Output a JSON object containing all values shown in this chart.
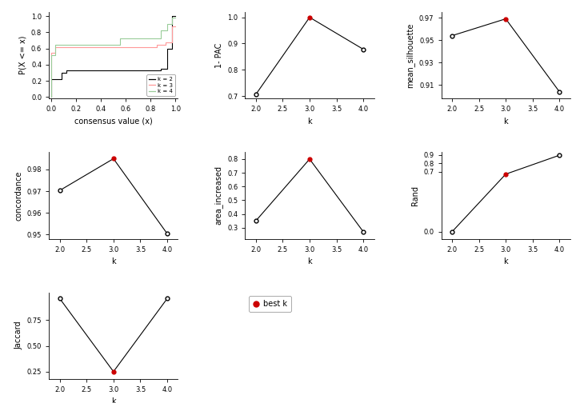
{
  "ecdf": {
    "k2_x": [
      0.0,
      0.0,
      0.08,
      0.08,
      0.12,
      0.12,
      0.88,
      0.88,
      0.93,
      0.93,
      0.97,
      0.97,
      1.0
    ],
    "k2_y": [
      0.0,
      0.22,
      0.22,
      0.3,
      0.3,
      0.33,
      0.33,
      0.35,
      0.35,
      0.6,
      0.6,
      1.0,
      1.0
    ],
    "k3_x": [
      0.0,
      0.0,
      0.03,
      0.03,
      0.85,
      0.85,
      0.92,
      0.92,
      0.97,
      0.97,
      1.0
    ],
    "k3_y": [
      0.0,
      0.55,
      0.55,
      0.62,
      0.62,
      0.65,
      0.65,
      0.68,
      0.68,
      0.87,
      0.87
    ],
    "k4_x": [
      0.0,
      0.0,
      0.03,
      0.03,
      0.55,
      0.55,
      0.88,
      0.88,
      0.93,
      0.93,
      0.97,
      0.97,
      1.0
    ],
    "k4_y": [
      0.0,
      0.52,
      0.52,
      0.65,
      0.65,
      0.72,
      0.72,
      0.82,
      0.82,
      0.9,
      0.9,
      0.98,
      0.98
    ],
    "xlabel": "consensus value (x)",
    "ylabel": "P(X <= x)",
    "color_k2": "#000000",
    "color_k3": "#FF9999",
    "color_k4": "#99CC99"
  },
  "pac": {
    "k": [
      2.0,
      3.0,
      4.0
    ],
    "y": [
      0.706,
      1.0,
      0.878
    ],
    "best_k": 3,
    "ylabel": "1- PAC",
    "ylim": [
      0.69,
      1.02
    ],
    "yticks": [
      0.7,
      0.8,
      0.9,
      1.0
    ]
  },
  "silhouette": {
    "k": [
      2.0,
      3.0,
      4.0
    ],
    "y": [
      0.954,
      0.969,
      0.904
    ],
    "best_k": 3,
    "ylabel": "mean_silhouette",
    "ylim": [
      0.898,
      0.975
    ],
    "yticks": [
      0.91,
      0.93,
      0.95,
      0.97
    ]
  },
  "concordance": {
    "k": [
      2.0,
      3.0,
      4.0
    ],
    "y": [
      0.9703,
      0.985,
      0.9503
    ],
    "best_k": 3,
    "ylabel": "concordance",
    "ylim": [
      0.948,
      0.988
    ],
    "yticks": [
      0.95,
      0.96,
      0.97,
      0.98
    ]
  },
  "area": {
    "k": [
      2.0,
      3.0,
      4.0
    ],
    "y": [
      0.35,
      0.8,
      0.27
    ],
    "best_k": 3,
    "ylabel": "area_increased",
    "ylim": [
      0.22,
      0.85
    ],
    "yticks": [
      0.3,
      0.4,
      0.5,
      0.6,
      0.7,
      0.8
    ]
  },
  "rand": {
    "k": [
      2.0,
      3.0,
      4.0
    ],
    "y": [
      0.0,
      0.674,
      0.895
    ],
    "best_k": 3,
    "ylabel": "Rand",
    "ylim": [
      -0.08,
      0.93
    ],
    "yticks": [
      0.0,
      0.7,
      0.8,
      0.9
    ]
  },
  "jaccard": {
    "k": [
      2.0,
      3.0,
      4.0
    ],
    "y": [
      0.96,
      0.25,
      0.96
    ],
    "best_k": 3,
    "ylabel": "Jaccard",
    "ylim": [
      0.18,
      1.02
    ],
    "yticks": [
      0.25,
      0.5,
      0.75
    ]
  },
  "common": {
    "xlabel": "k",
    "xlim": [
      1.8,
      4.2
    ],
    "xticks": [
      2.0,
      2.5,
      3.0,
      3.5,
      4.0
    ],
    "best_color": "#CC0000",
    "open_color": "#000000",
    "line_color": "#000000",
    "tick_fontsize": 6,
    "label_fontsize": 7
  }
}
